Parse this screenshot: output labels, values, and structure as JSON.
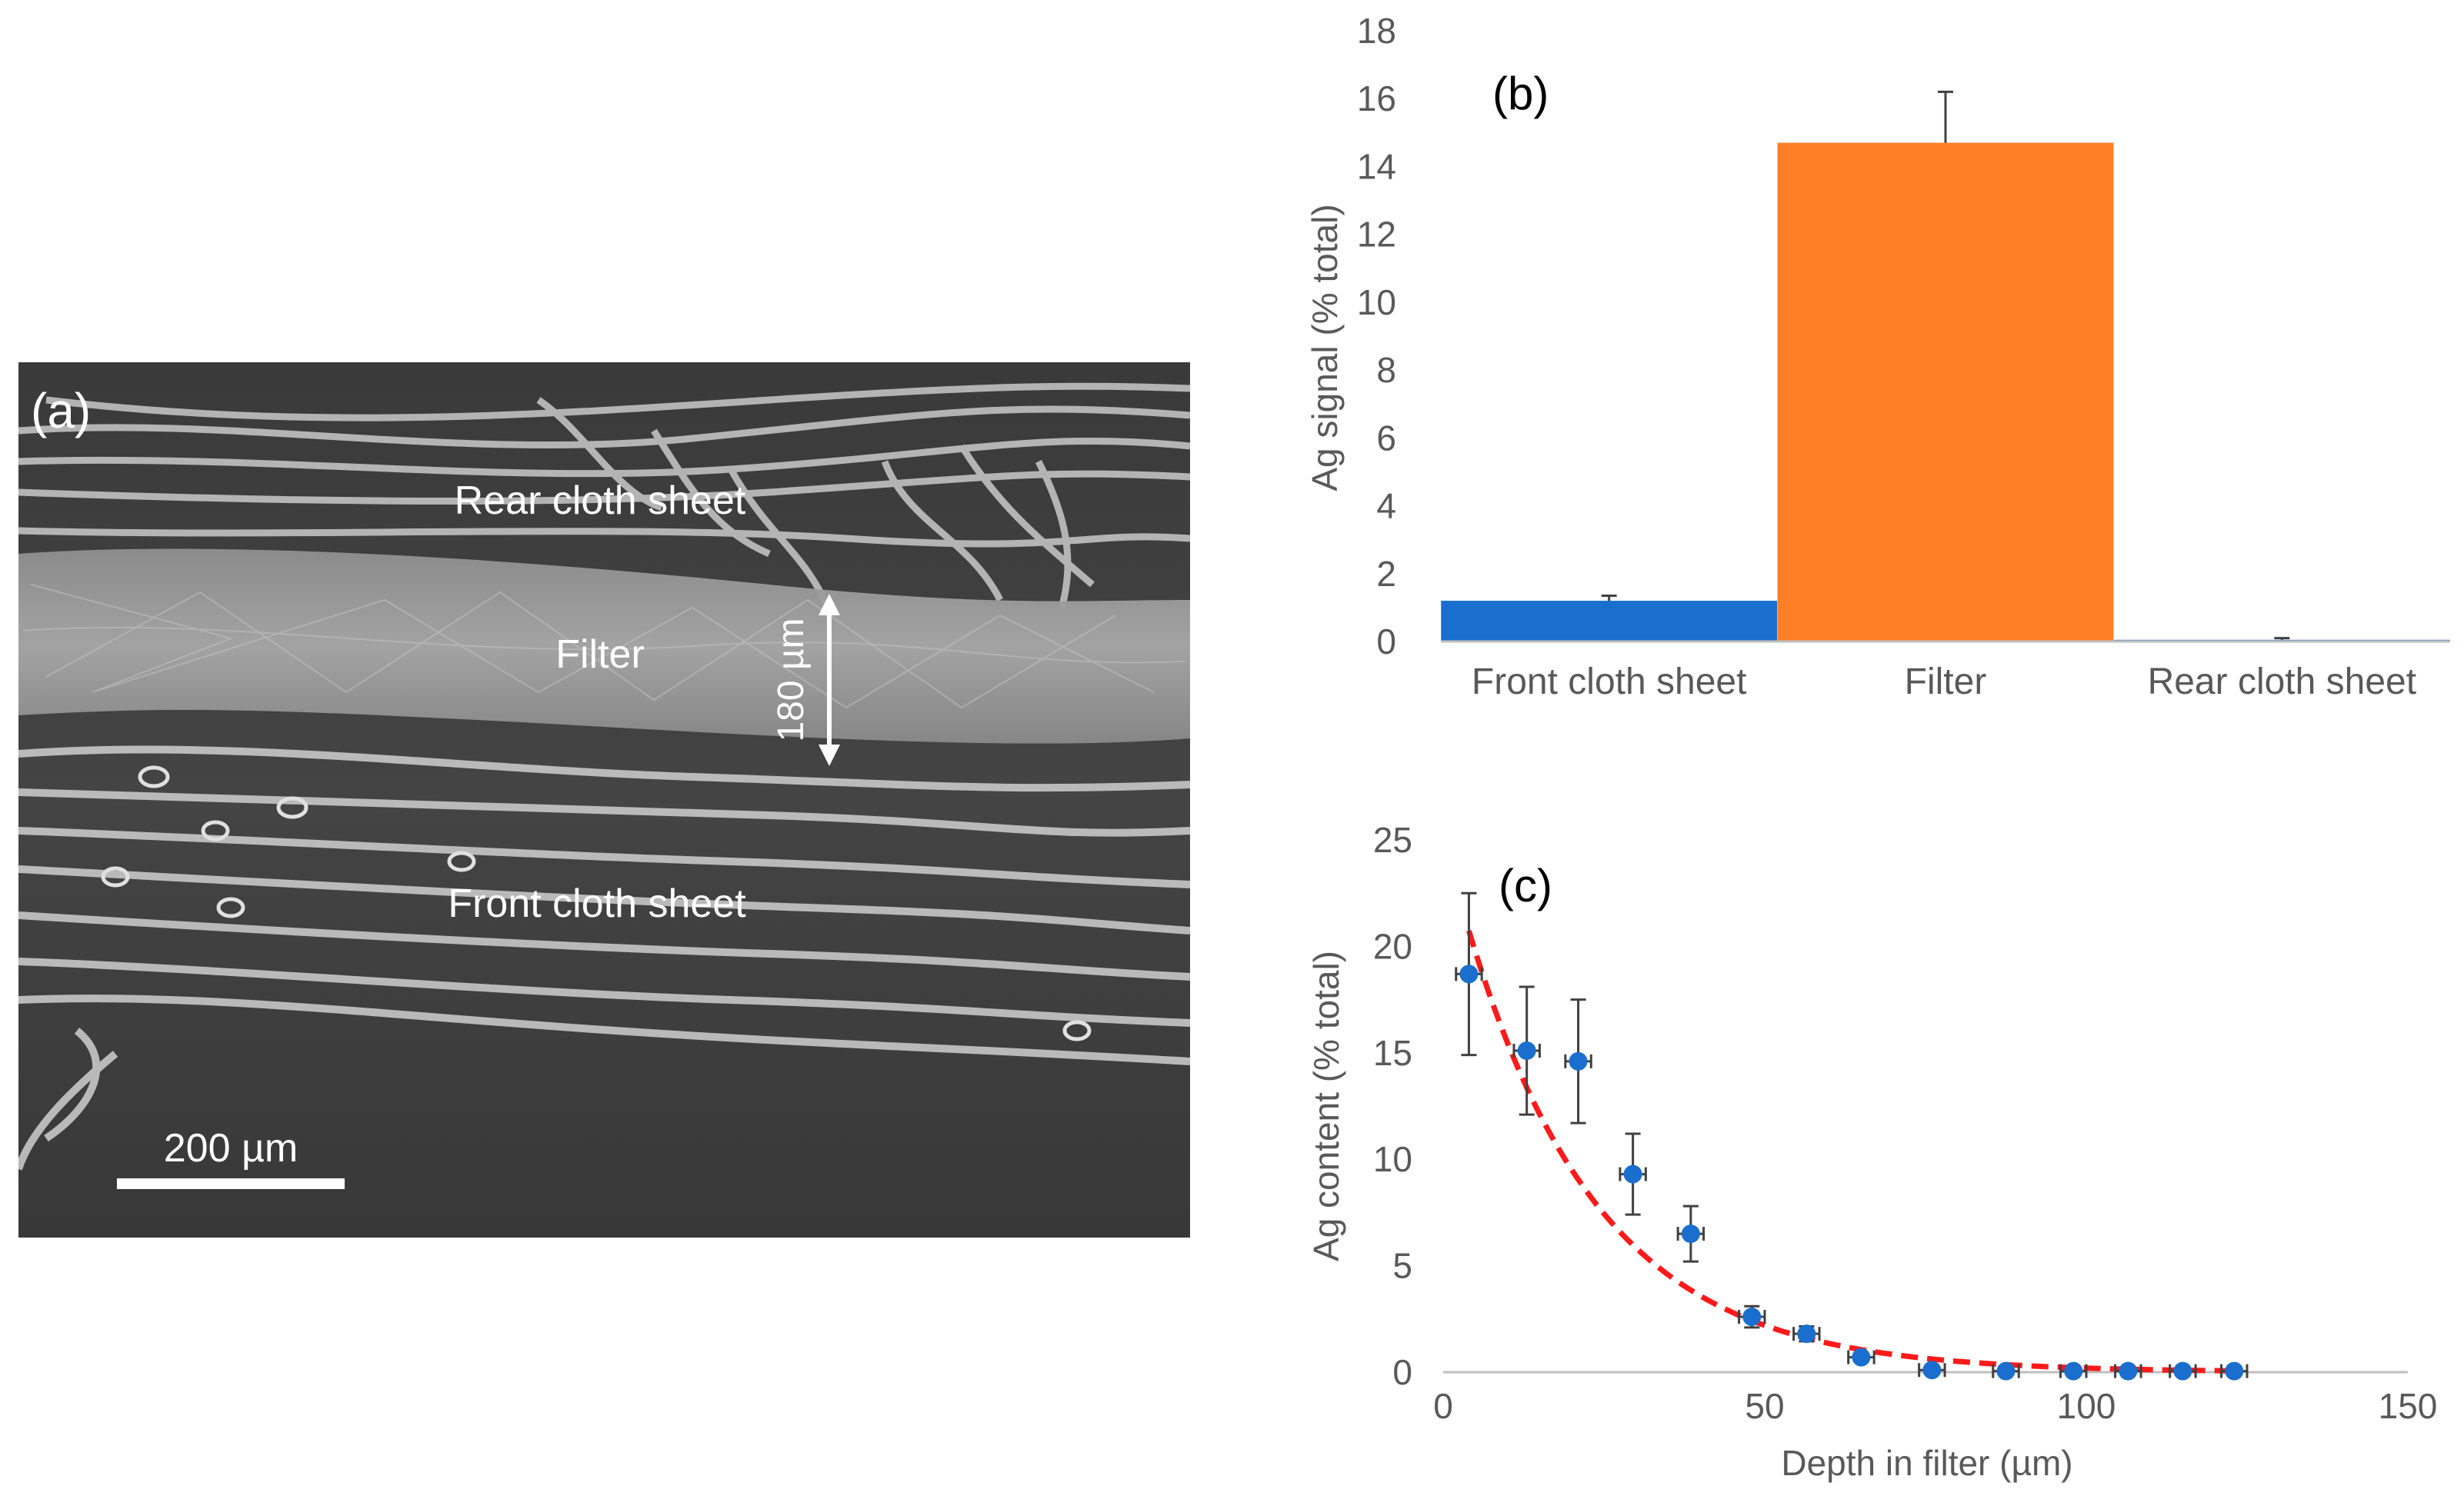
{
  "panel_a": {
    "label": "(a)",
    "rear_label": "Rear cloth sheet",
    "filter_label": "Filter",
    "front_label": "Front cloth sheet",
    "thickness_label": "180 µm",
    "scale_label": "200 µm"
  },
  "chart_data": [
    {
      "type": "bar",
      "panel": "(b)",
      "title": "",
      "xlabel": "",
      "ylabel": "Ag signal (% total)",
      "categories": [
        "Front cloth sheet",
        "Filter",
        "Rear cloth sheet"
      ],
      "values": [
        1.2,
        14.7,
        0.05
      ],
      "errors": [
        0.15,
        1.5,
        0.05
      ],
      "colors": [
        "#1a6fce",
        "#ff7f27",
        "#4a7fd0"
      ],
      "ylim": [
        0,
        18
      ],
      "yticks": [
        "0",
        "2",
        "4",
        "6",
        "8",
        "10",
        "12",
        "14",
        "16",
        "18"
      ],
      "grid": false
    },
    {
      "type": "scatter",
      "panel": "(c)",
      "title": "",
      "xlabel": "Depth in filter (µm)",
      "ylabel": "Ag content (% total)",
      "x": [
        4,
        13,
        21,
        29.5,
        38.5,
        48,
        56.5,
        65,
        76,
        87.5,
        98,
        106.5,
        115,
        123
      ],
      "y": [
        18.7,
        15.1,
        14.6,
        9.3,
        6.5,
        2.6,
        1.8,
        0.7,
        0.1,
        0.05,
        0.05,
        0.05,
        0.05,
        0.05
      ],
      "yerr": [
        3.8,
        3.0,
        2.9,
        1.9,
        1.3,
        0.5,
        0.35,
        0.15,
        0.05,
        0.05,
        0.05,
        0.05,
        0.05,
        0.05
      ],
      "xerr": [
        2,
        2,
        2,
        2,
        2,
        2,
        2,
        2,
        2,
        2,
        2,
        2,
        2,
        2
      ],
      "point_color": "#1a6fce",
      "fit": {
        "type": "exponential",
        "amplitude": 25.2,
        "decay_length": 20.5,
        "x_range": [
          4,
          123
        ],
        "color": "#ff1a1a",
        "style": "dashed"
      },
      "xlim": [
        0,
        150
      ],
      "ylim": [
        0,
        25
      ],
      "xticks": [
        "0",
        "50",
        "100",
        "150"
      ],
      "yticks": [
        "0",
        "5",
        "10",
        "15",
        "20",
        "25"
      ],
      "grid": false
    }
  ]
}
